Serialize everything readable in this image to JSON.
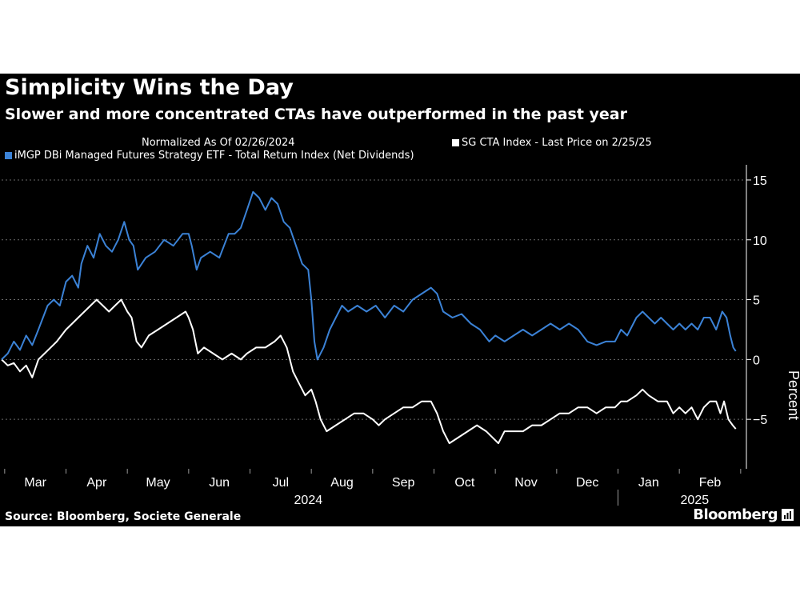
{
  "title": "Simplicity Wins the Day",
  "subtitle": "Slower and more concentrated CTAs have outperformed in the past year",
  "note": "Normalized As Of 02/26/2024",
  "source": "Source: Bloomberg, Societe Generale",
  "brand": "Bloomberg",
  "colors": {
    "background": "#000000",
    "series_blue": "#3b82d6",
    "series_white": "#ffffff",
    "grid": "#6b6b6b",
    "text": "#ffffff"
  },
  "chart_data": {
    "type": "line",
    "title": "Simplicity Wins the Day",
    "subtitle": "Slower and more concentrated CTAs have outperformed in the past year",
    "ylabel": "Percent",
    "ylim": [
      -9,
      16
    ],
    "yticks": [
      -5,
      0,
      5,
      10,
      15
    ],
    "xlim": [
      0,
      12.0
    ],
    "x_tick_labels": [
      "Mar",
      "Apr",
      "May",
      "Jun",
      "Jul",
      "Aug",
      "Sep",
      "Oct",
      "Nov",
      "Dec",
      "Jan",
      "Feb"
    ],
    "x_tick_positions": [
      0.55,
      1.55,
      2.55,
      3.55,
      4.55,
      5.55,
      6.55,
      7.55,
      8.55,
      9.55,
      10.55,
      11.55
    ],
    "x_boundaries": [
      0.05,
      1.05,
      2.05,
      3.05,
      4.05,
      5.05,
      6.05,
      7.05,
      8.05,
      9.05,
      10.05,
      11.05,
      12.05
    ],
    "year_labels": [
      {
        "label": "2024",
        "x": 5.0
      },
      {
        "label": "2025",
        "x": 11.3
      }
    ],
    "year_divider_x": 10.05,
    "x_unit": "months since start (Mar 2024 = 0)",
    "series": [
      {
        "name": "iMGP DBi Managed Futures Strategy ETF - Total Return Index (Net Dividends)",
        "color": "#3b82d6",
        "points": [
          [
            0.0,
            0.0
          ],
          [
            0.1,
            0.5
          ],
          [
            0.2,
            1.5
          ],
          [
            0.3,
            0.8
          ],
          [
            0.4,
            2.0
          ],
          [
            0.5,
            1.2
          ],
          [
            0.6,
            2.5
          ],
          [
            0.75,
            4.5
          ],
          [
            0.85,
            5.0
          ],
          [
            0.95,
            4.5
          ],
          [
            1.05,
            6.5
          ],
          [
            1.15,
            7.0
          ],
          [
            1.25,
            6.0
          ],
          [
            1.3,
            8.0
          ],
          [
            1.4,
            9.5
          ],
          [
            1.5,
            8.5
          ],
          [
            1.6,
            10.5
          ],
          [
            1.7,
            9.5
          ],
          [
            1.8,
            9.0
          ],
          [
            1.9,
            10.0
          ],
          [
            2.0,
            11.5
          ],
          [
            2.08,
            10.0
          ],
          [
            2.15,
            9.5
          ],
          [
            2.22,
            7.5
          ],
          [
            2.35,
            8.5
          ],
          [
            2.5,
            9.0
          ],
          [
            2.65,
            10.0
          ],
          [
            2.8,
            9.5
          ],
          [
            2.95,
            10.5
          ],
          [
            3.05,
            10.5
          ],
          [
            3.1,
            9.5
          ],
          [
            3.18,
            7.5
          ],
          [
            3.25,
            8.5
          ],
          [
            3.4,
            9.0
          ],
          [
            3.55,
            8.5
          ],
          [
            3.7,
            10.5
          ],
          [
            3.8,
            10.5
          ],
          [
            3.9,
            11.0
          ],
          [
            4.0,
            12.5
          ],
          [
            4.1,
            14.0
          ],
          [
            4.2,
            13.5
          ],
          [
            4.3,
            12.5
          ],
          [
            4.4,
            13.5
          ],
          [
            4.5,
            13.0
          ],
          [
            4.6,
            11.5
          ],
          [
            4.7,
            11.0
          ],
          [
            4.8,
            9.5
          ],
          [
            4.9,
            8.0
          ],
          [
            5.0,
            7.5
          ],
          [
            5.05,
            5.0
          ],
          [
            5.1,
            1.5
          ],
          [
            5.15,
            0.0
          ],
          [
            5.25,
            1.0
          ],
          [
            5.35,
            2.5
          ],
          [
            5.45,
            3.5
          ],
          [
            5.55,
            4.5
          ],
          [
            5.65,
            4.0
          ],
          [
            5.8,
            4.5
          ],
          [
            5.95,
            4.0
          ],
          [
            6.1,
            4.5
          ],
          [
            6.25,
            3.5
          ],
          [
            6.4,
            4.5
          ],
          [
            6.55,
            4.0
          ],
          [
            6.7,
            5.0
          ],
          [
            6.85,
            5.5
          ],
          [
            7.0,
            6.0
          ],
          [
            7.1,
            5.5
          ],
          [
            7.2,
            4.0
          ],
          [
            7.35,
            3.5
          ],
          [
            7.5,
            3.8
          ],
          [
            7.65,
            3.0
          ],
          [
            7.8,
            2.5
          ],
          [
            7.95,
            1.5
          ],
          [
            8.05,
            2.0
          ],
          [
            8.2,
            1.5
          ],
          [
            8.35,
            2.0
          ],
          [
            8.5,
            2.5
          ],
          [
            8.65,
            2.0
          ],
          [
            8.8,
            2.5
          ],
          [
            8.95,
            3.0
          ],
          [
            9.1,
            2.5
          ],
          [
            9.25,
            3.0
          ],
          [
            9.4,
            2.5
          ],
          [
            9.55,
            1.5
          ],
          [
            9.7,
            1.2
          ],
          [
            9.85,
            1.5
          ],
          [
            10.0,
            1.5
          ],
          [
            10.1,
            2.5
          ],
          [
            10.2,
            2.0
          ],
          [
            10.35,
            3.5
          ],
          [
            10.45,
            4.0
          ],
          [
            10.55,
            3.5
          ],
          [
            10.65,
            3.0
          ],
          [
            10.75,
            3.5
          ],
          [
            10.85,
            3.0
          ],
          [
            10.95,
            2.5
          ],
          [
            11.05,
            3.0
          ],
          [
            11.15,
            2.5
          ],
          [
            11.25,
            3.0
          ],
          [
            11.35,
            2.5
          ],
          [
            11.45,
            3.5
          ],
          [
            11.55,
            3.5
          ],
          [
            11.65,
            2.5
          ],
          [
            11.75,
            4.0
          ],
          [
            11.82,
            3.5
          ],
          [
            11.88,
            2.0
          ],
          [
            11.93,
            1.0
          ],
          [
            11.97,
            0.7
          ]
        ]
      },
      {
        "name": "SG CTA Index - Last Price on 2/25/25",
        "color": "#ffffff",
        "points": [
          [
            0.0,
            0.0
          ],
          [
            0.1,
            -0.5
          ],
          [
            0.2,
            -0.3
          ],
          [
            0.3,
            -1.0
          ],
          [
            0.4,
            -0.5
          ],
          [
            0.5,
            -1.5
          ],
          [
            0.6,
            0.0
          ],
          [
            0.7,
            0.5
          ],
          [
            0.8,
            1.0
          ],
          [
            0.9,
            1.5
          ],
          [
            1.05,
            2.5
          ],
          [
            1.15,
            3.0
          ],
          [
            1.25,
            3.5
          ],
          [
            1.35,
            4.0
          ],
          [
            1.45,
            4.5
          ],
          [
            1.55,
            5.0
          ],
          [
            1.65,
            4.5
          ],
          [
            1.75,
            4.0
          ],
          [
            1.85,
            4.5
          ],
          [
            1.95,
            5.0
          ],
          [
            2.05,
            4.0
          ],
          [
            2.12,
            3.5
          ],
          [
            2.2,
            1.5
          ],
          [
            2.28,
            1.0
          ],
          [
            2.4,
            2.0
          ],
          [
            2.55,
            2.5
          ],
          [
            2.7,
            3.0
          ],
          [
            2.85,
            3.5
          ],
          [
            3.0,
            4.0
          ],
          [
            3.05,
            3.5
          ],
          [
            3.12,
            2.5
          ],
          [
            3.2,
            0.5
          ],
          [
            3.3,
            1.0
          ],
          [
            3.45,
            0.5
          ],
          [
            3.6,
            0.0
          ],
          [
            3.75,
            0.5
          ],
          [
            3.9,
            0.0
          ],
          [
            4.0,
            0.5
          ],
          [
            4.15,
            1.0
          ],
          [
            4.3,
            1.0
          ],
          [
            4.45,
            1.5
          ],
          [
            4.55,
            2.0
          ],
          [
            4.65,
            1.0
          ],
          [
            4.75,
            -1.0
          ],
          [
            4.85,
            -2.0
          ],
          [
            4.95,
            -3.0
          ],
          [
            5.05,
            -2.5
          ],
          [
            5.12,
            -3.5
          ],
          [
            5.2,
            -5.0
          ],
          [
            5.3,
            -6.0
          ],
          [
            5.45,
            -5.5
          ],
          [
            5.6,
            -5.0
          ],
          [
            5.75,
            -4.5
          ],
          [
            5.9,
            -4.5
          ],
          [
            6.05,
            -5.0
          ],
          [
            6.15,
            -5.5
          ],
          [
            6.25,
            -5.0
          ],
          [
            6.4,
            -4.5
          ],
          [
            6.55,
            -4.0
          ],
          [
            6.7,
            -4.0
          ],
          [
            6.85,
            -3.5
          ],
          [
            7.0,
            -3.5
          ],
          [
            7.1,
            -4.5
          ],
          [
            7.2,
            -6.0
          ],
          [
            7.3,
            -7.0
          ],
          [
            7.45,
            -6.5
          ],
          [
            7.6,
            -6.0
          ],
          [
            7.75,
            -5.5
          ],
          [
            7.9,
            -6.0
          ],
          [
            8.0,
            -6.5
          ],
          [
            8.1,
            -7.0
          ],
          [
            8.2,
            -6.0
          ],
          [
            8.35,
            -6.0
          ],
          [
            8.5,
            -6.0
          ],
          [
            8.65,
            -5.5
          ],
          [
            8.8,
            -5.5
          ],
          [
            8.95,
            -5.0
          ],
          [
            9.1,
            -4.5
          ],
          [
            9.25,
            -4.5
          ],
          [
            9.4,
            -4.0
          ],
          [
            9.55,
            -4.0
          ],
          [
            9.7,
            -4.5
          ],
          [
            9.85,
            -4.0
          ],
          [
            10.0,
            -4.0
          ],
          [
            10.1,
            -3.5
          ],
          [
            10.2,
            -3.5
          ],
          [
            10.35,
            -3.0
          ],
          [
            10.45,
            -2.5
          ],
          [
            10.55,
            -3.0
          ],
          [
            10.7,
            -3.5
          ],
          [
            10.85,
            -3.5
          ],
          [
            10.95,
            -4.5
          ],
          [
            11.05,
            -4.0
          ],
          [
            11.15,
            -4.5
          ],
          [
            11.25,
            -4.0
          ],
          [
            11.35,
            -5.0
          ],
          [
            11.45,
            -4.0
          ],
          [
            11.55,
            -3.5
          ],
          [
            11.65,
            -3.5
          ],
          [
            11.72,
            -4.5
          ],
          [
            11.78,
            -3.5
          ],
          [
            11.85,
            -5.0
          ],
          [
            11.92,
            -5.5
          ],
          [
            11.97,
            -5.8
          ]
        ]
      }
    ]
  }
}
